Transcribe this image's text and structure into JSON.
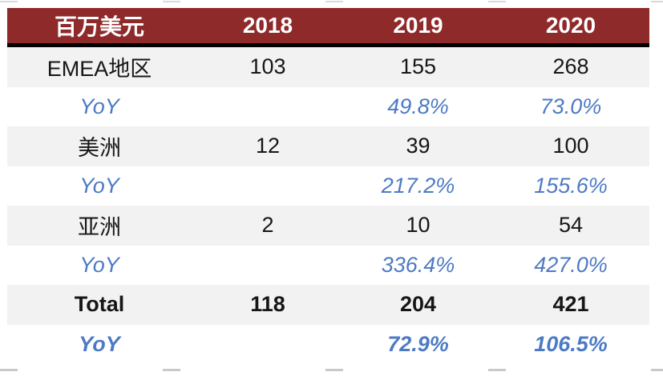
{
  "chart_data": {
    "type": "table",
    "unit_header": "百万美元",
    "columns": [
      "2018",
      "2019",
      "2020"
    ],
    "rows": [
      {
        "label": "EMEA地区",
        "kind": "region",
        "values": [
          "103",
          "155",
          "268"
        ]
      },
      {
        "label": "YoY",
        "kind": "yoy",
        "values": [
          "",
          "49.8%",
          "73.0%"
        ]
      },
      {
        "label": "美洲",
        "kind": "region",
        "values": [
          "12",
          "39",
          "100"
        ]
      },
      {
        "label": "YoY",
        "kind": "yoy",
        "values": [
          "",
          "217.2%",
          "155.6%"
        ]
      },
      {
        "label": "亚洲",
        "kind": "region",
        "values": [
          "2",
          "10",
          "54"
        ]
      },
      {
        "label": "YoY",
        "kind": "yoy",
        "values": [
          "",
          "336.4%",
          "427.0%"
        ]
      },
      {
        "label": "Total",
        "kind": "total",
        "values": [
          "118",
          "204",
          "421"
        ]
      },
      {
        "label": "YoY",
        "kind": "yoy-total",
        "values": [
          "",
          "72.9%",
          "106.5%"
        ]
      }
    ]
  },
  "colors": {
    "header_bg": "#8f2a2b",
    "header_text": "#ffffff",
    "header_rule": "#000000",
    "band_row_bg": "#f2f2f2",
    "plain_row_bg": "#ffffff",
    "body_text": "#161616",
    "yoy_text": "#4d7ac5",
    "dash_line": "#c9c9c9"
  }
}
